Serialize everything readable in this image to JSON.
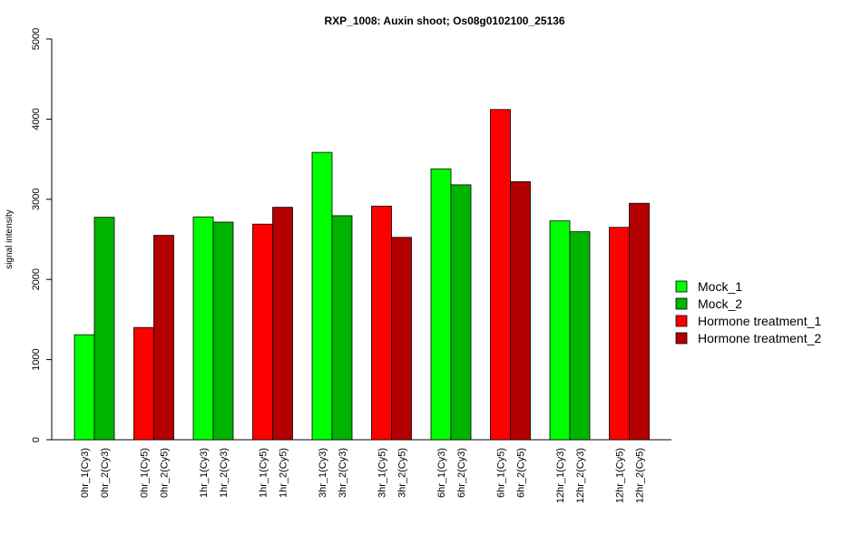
{
  "chart_data": {
    "type": "bar",
    "title": "RXP_1008: Auxin shoot; Os08g0102100_25136",
    "xlabel": "",
    "ylabel": "signal intensity",
    "ylim": [
      0,
      5000
    ],
    "yticks": [
      0,
      1000,
      2000,
      3000,
      4000,
      5000
    ],
    "grid": false,
    "legend_position": "right",
    "legend": [
      {
        "name": "Mock_1",
        "color": "#00ff00"
      },
      {
        "name": "Mock_2",
        "color": "#00b400"
      },
      {
        "name": "Hormone treatment_1",
        "color": "#ff0000"
      },
      {
        "name": "Hormone treatment_2",
        "color": "#b40000"
      }
    ],
    "groups": [
      {
        "bars": [
          {
            "label": "0hr_1(Cy3)",
            "value": 1310,
            "series": "Mock_1"
          },
          {
            "label": "0hr_2(Cy3)",
            "value": 2775,
            "series": "Mock_2"
          }
        ]
      },
      {
        "bars": [
          {
            "label": "0hr_1(Cy5)",
            "value": 1400,
            "series": "Hormone treatment_1"
          },
          {
            "label": "0hr_2(Cy5)",
            "value": 2550,
            "series": "Hormone treatment_2"
          }
        ]
      },
      {
        "bars": [
          {
            "label": "1hr_1(Cy3)",
            "value": 2780,
            "series": "Mock_1"
          },
          {
            "label": "1hr_2(Cy3)",
            "value": 2715,
            "series": "Mock_2"
          }
        ]
      },
      {
        "bars": [
          {
            "label": "1hr_1(Cy5)",
            "value": 2690,
            "series": "Hormone treatment_1"
          },
          {
            "label": "1hr_2(Cy5)",
            "value": 2900,
            "series": "Hormone treatment_2"
          }
        ]
      },
      {
        "bars": [
          {
            "label": "3hr_1(Cy3)",
            "value": 3585,
            "series": "Mock_1"
          },
          {
            "label": "3hr_2(Cy3)",
            "value": 2795,
            "series": "Mock_2"
          }
        ]
      },
      {
        "bars": [
          {
            "label": "3hr_1(Cy5)",
            "value": 2915,
            "series": "Hormone treatment_1"
          },
          {
            "label": "3hr_2(Cy5)",
            "value": 2525,
            "series": "Hormone treatment_2"
          }
        ]
      },
      {
        "bars": [
          {
            "label": "6hr_1(Cy3)",
            "value": 3380,
            "series": "Mock_1"
          },
          {
            "label": "6hr_2(Cy3)",
            "value": 3180,
            "series": "Mock_2"
          }
        ]
      },
      {
        "bars": [
          {
            "label": "6hr_1(Cy5)",
            "value": 4120,
            "series": "Hormone treatment_1"
          },
          {
            "label": "6hr_2(Cy5)",
            "value": 3220,
            "series": "Hormone treatment_2"
          }
        ]
      },
      {
        "bars": [
          {
            "label": "12hr_1(Cy3)",
            "value": 2730,
            "series": "Mock_1"
          },
          {
            "label": "12hr_2(Cy3)",
            "value": 2595,
            "series": "Mock_2"
          }
        ]
      },
      {
        "bars": [
          {
            "label": "12hr_1(Cy5)",
            "value": 2650,
            "series": "Hormone treatment_1"
          },
          {
            "label": "12hr_2(Cy5)",
            "value": 2950,
            "series": "Hormone treatment_2"
          }
        ]
      }
    ]
  }
}
